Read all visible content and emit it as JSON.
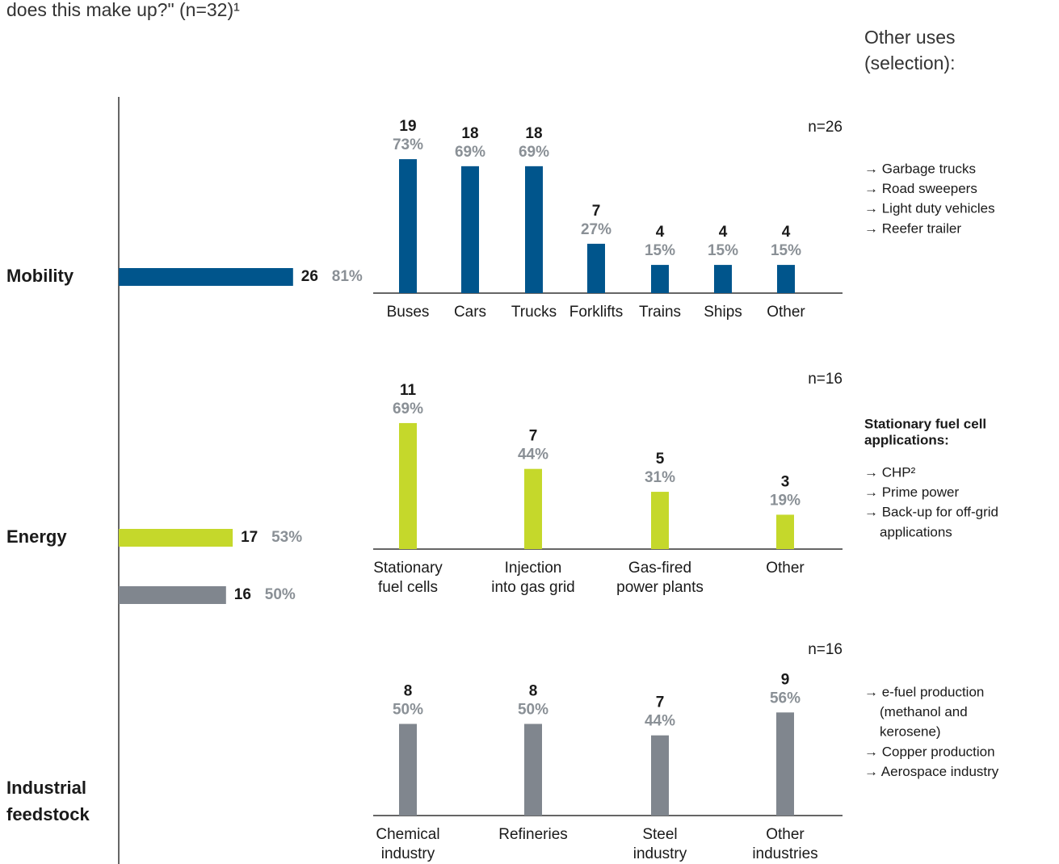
{
  "header": {
    "subtitle": "does this make up?\" (n=32)¹",
    "other_uses": [
      "Other uses",
      "(selection):"
    ]
  },
  "chart_data": [
    {
      "type": "hbar",
      "categories": [
        [
          "Mobility"
        ],
        [
          "Energy"
        ],
        [
          "Industrial",
          "feedstock"
        ]
      ],
      "values": [
        26,
        17,
        16
      ],
      "percent_labels": [
        "81%",
        "53%",
        "50%"
      ],
      "colors": [
        "#00558c",
        "#c5d82b",
        "#80868e"
      ]
    },
    {
      "type": "bar",
      "n": 26,
      "n_label": "n=26",
      "color": "#00558c",
      "categories": [
        [
          "Buses"
        ],
        [
          "Cars"
        ],
        [
          "Trucks"
        ],
        [
          "Forklifts"
        ],
        [
          "Trains"
        ],
        [
          "Ships"
        ],
        [
          "Other"
        ]
      ],
      "values": [
        19,
        18,
        18,
        7,
        4,
        4,
        4
      ],
      "percent_labels": [
        "73%",
        "69%",
        "69%",
        "27%",
        "15%",
        "15%",
        "15%"
      ]
    },
    {
      "type": "bar",
      "n": 16,
      "n_label": "n=16",
      "color": "#c5d82b",
      "categories": [
        [
          "Stationary",
          "fuel cells"
        ],
        [
          "Injection",
          "into gas grid"
        ],
        [
          "Gas-fired",
          "power plants"
        ],
        [
          "Other"
        ]
      ],
      "values": [
        11,
        7,
        5,
        3
      ],
      "percent_labels": [
        "69%",
        "44%",
        "31%",
        "19%"
      ]
    },
    {
      "type": "bar",
      "n": 16,
      "n_label": "n=16",
      "color": "#80868e",
      "categories": [
        [
          "Chemical",
          "industry"
        ],
        [
          "Refineries"
        ],
        [
          "Steel",
          "industry"
        ],
        [
          "Other",
          "industries"
        ]
      ],
      "values": [
        8,
        8,
        7,
        9
      ],
      "percent_labels": [
        "50%",
        "50%",
        "44%",
        "56%"
      ]
    }
  ],
  "notes": [
    {
      "heading": [],
      "items": [
        [
          "→ Garbage trucks"
        ],
        [
          "→ Road sweepers"
        ],
        [
          "→ Light duty vehicles"
        ],
        [
          "→ Reefer trailer"
        ]
      ]
    },
    {
      "heading": [
        "Stationary fuel cell",
        "applications:"
      ],
      "items": [
        [
          "→ CHP²"
        ],
        [
          "→ Prime power"
        ],
        [
          "→ Back-up for off-grid",
          "applications"
        ]
      ]
    },
    {
      "heading": [],
      "items": [
        [
          "→ e-fuel production",
          "(methanol and",
          "kerosene)"
        ],
        [
          "→ Copper production"
        ],
        [
          "→ Aerospace industry"
        ]
      ]
    }
  ]
}
